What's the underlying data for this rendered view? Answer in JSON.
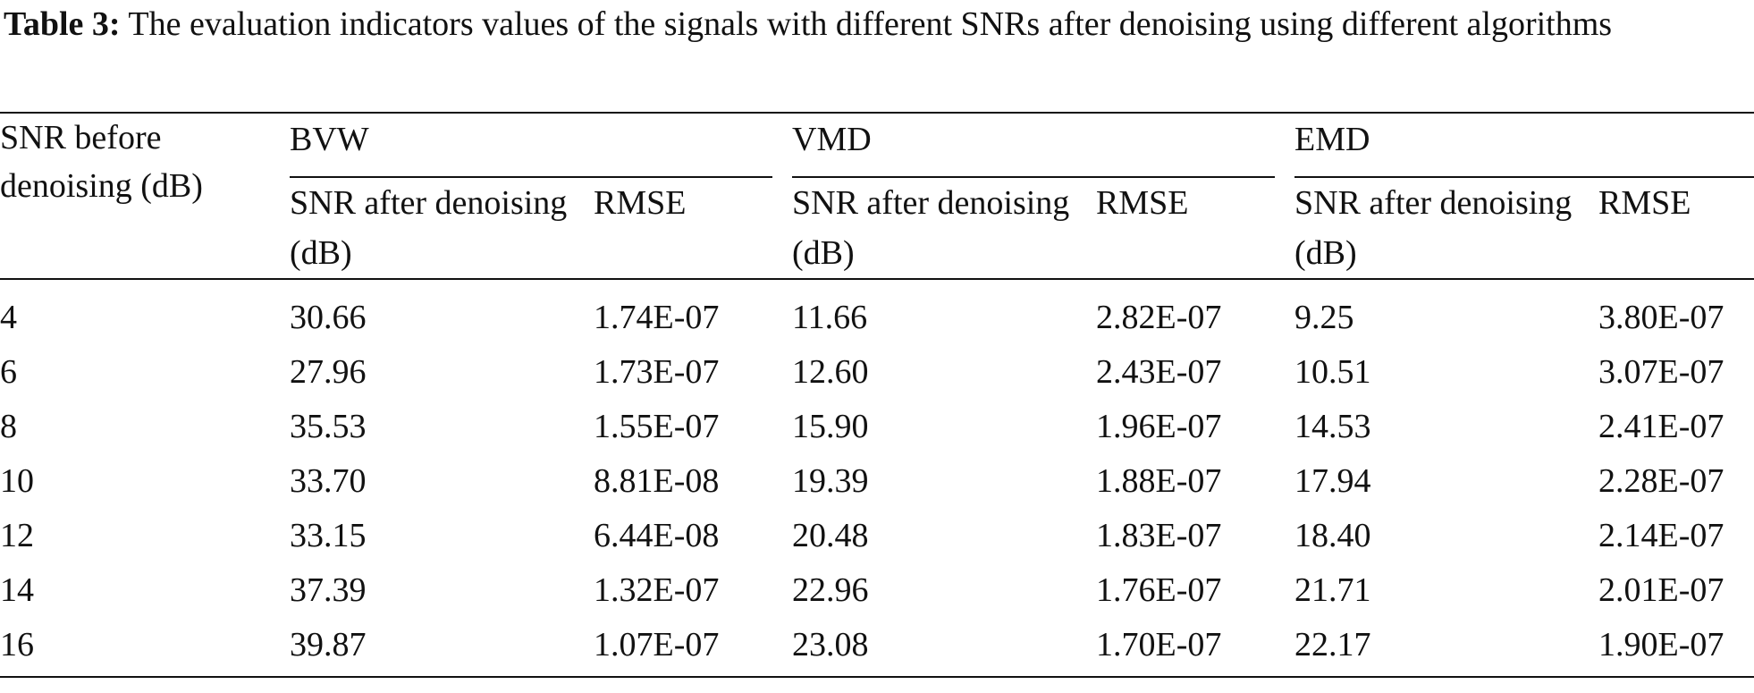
{
  "caption": {
    "label": "Table 3:",
    "text": "The evaluation indicators values of the signals with different SNRs after denoising using different algorithms"
  },
  "table": {
    "row_header": "SNR before denoising (dB)",
    "groups": [
      "BVW",
      "VMD",
      "EMD"
    ],
    "sub_headers": [
      "SNR after denoising (dB)",
      "RMSE",
      "SNR after denoising (dB)",
      "RMSE",
      "SNR after denoising (dB)",
      "RMSE"
    ],
    "rows": [
      [
        "4",
        "30.66",
        "1.74E-07",
        "11.66",
        "2.82E-07",
        "9.25",
        "3.80E-07"
      ],
      [
        "6",
        "27.96",
        "1.73E-07",
        "12.60",
        "2.43E-07",
        "10.51",
        "3.07E-07"
      ],
      [
        "8",
        "35.53",
        "1.55E-07",
        "15.90",
        "1.96E-07",
        "14.53",
        "2.41E-07"
      ],
      [
        "10",
        "33.70",
        "8.81E-08",
        "19.39",
        "1.88E-07",
        "17.94",
        "2.28E-07"
      ],
      [
        "12",
        "33.15",
        "6.44E-08",
        "20.48",
        "1.83E-07",
        "18.40",
        "2.14E-07"
      ],
      [
        "14",
        "37.39",
        "1.32E-07",
        "22.96",
        "1.76E-07",
        "21.71",
        "2.01E-07"
      ],
      [
        "16",
        "39.87",
        "1.07E-07",
        "23.08",
        "1.70E-07",
        "22.17",
        "1.90E-07"
      ]
    ]
  }
}
